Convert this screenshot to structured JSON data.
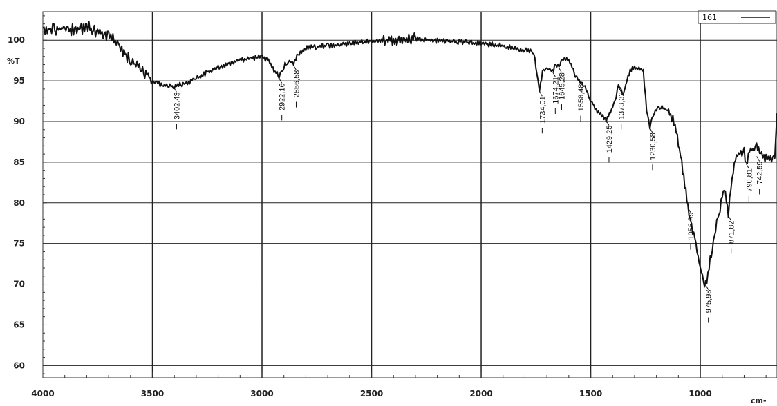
{
  "chart_data": {
    "type": "line",
    "title": "",
    "xlabel": "cm-",
    "ylabel": "%T",
    "xlim": [
      4000,
      650
    ],
    "ylim": [
      58.5,
      103.5
    ],
    "x_reversed": true,
    "grid": true,
    "legend_position": "top-right",
    "x_ticks": [
      4000,
      3500,
      3000,
      2500,
      2000,
      1500,
      1000
    ],
    "y_ticks": [
      100,
      95,
      90,
      85,
      80,
      75,
      70,
      65,
      60
    ],
    "series": [
      {
        "name": "161",
        "color": "#111111",
        "x": [
          4000,
          3950,
          3900,
          3850,
          3800,
          3750,
          3700,
          3650,
          3600,
          3550,
          3500,
          3450,
          3400,
          3350,
          3300,
          3250,
          3200,
          3150,
          3100,
          3050,
          3000,
          2970,
          2950,
          2922,
          2900,
          2880,
          2856,
          2830,
          2800,
          2750,
          2700,
          2600,
          2500,
          2400,
          2350,
          2300,
          2200,
          2100,
          2000,
          1900,
          1850,
          1800,
          1760,
          1745,
          1734,
          1720,
          1700,
          1674,
          1660,
          1645,
          1630,
          1610,
          1590,
          1570,
          1558,
          1530,
          1500,
          1470,
          1450,
          1429,
          1410,
          1390,
          1373,
          1350,
          1320,
          1290,
          1260,
          1245,
          1230,
          1210,
          1180,
          1150,
          1120,
          1100,
          1080,
          1057,
          1040,
          1020,
          1000,
          985,
          976,
          965,
          950,
          930,
          910,
          890,
          872,
          860,
          840,
          820,
          800,
          791,
          770,
          743,
          720,
          700,
          680,
          660,
          650
        ],
        "y": [
          101.5,
          101.3,
          101.5,
          101.2,
          101.7,
          101.0,
          100.6,
          99.2,
          97.5,
          96.5,
          95.0,
          94.4,
          94.3,
          94.7,
          95.3,
          96.0,
          96.6,
          97.1,
          97.5,
          97.8,
          97.9,
          97.5,
          96.5,
          95.5,
          96.8,
          97.5,
          97.1,
          98.5,
          99.0,
          99.2,
          99.3,
          99.6,
          99.9,
          99.9,
          100.1,
          100.2,
          99.9,
          99.8,
          99.6,
          99.3,
          99.0,
          98.8,
          98.5,
          96.0,
          93.8,
          96.0,
          96.5,
          96.2,
          97.0,
          96.7,
          97.5,
          97.8,
          97.2,
          95.6,
          95.3,
          94.4,
          92.6,
          91.3,
          90.8,
          90.2,
          91.0,
          92.5,
          94.3,
          93.5,
          96.4,
          96.6,
          96.2,
          91.5,
          89.3,
          91.2,
          91.8,
          91.5,
          90.0,
          87.5,
          84.0,
          79.5,
          77.3,
          74.7,
          72.0,
          70.2,
          70.0,
          71.2,
          73.8,
          76.9,
          79.4,
          81.9,
          78.5,
          82.1,
          85.5,
          86.0,
          86.3,
          84.9,
          86.4,
          86.9,
          85.8,
          85.5,
          85.2,
          86.0,
          91.0
        ]
      }
    ],
    "annotations": [
      {
        "x": 3402.43,
        "y": 94.3,
        "text": "3402,43"
      },
      {
        "x": 2922.16,
        "y": 95.4,
        "text": "2922,16"
      },
      {
        "x": 2856.58,
        "y": 97.0,
        "text": "2856,58"
      },
      {
        "x": 1734.01,
        "y": 93.8,
        "text": "1734,01"
      },
      {
        "x": 1674.21,
        "y": 96.2,
        "text": "1674,21"
      },
      {
        "x": 1645.28,
        "y": 96.7,
        "text": "1645,28"
      },
      {
        "x": 1558.48,
        "y": 95.3,
        "text": "1558,48"
      },
      {
        "x": 1429.25,
        "y": 90.2,
        "text": "1429,25"
      },
      {
        "x": 1373.32,
        "y": 94.3,
        "text": "1373,32"
      },
      {
        "x": 1230.58,
        "y": 89.3,
        "text": "1230,58"
      },
      {
        "x": 1056.99,
        "y": 79.5,
        "text": "1056,99"
      },
      {
        "x": 975.98,
        "y": 70.0,
        "text": "975,98"
      },
      {
        "x": 871.82,
        "y": 78.5,
        "text": "871,82"
      },
      {
        "x": 790.81,
        "y": 84.9,
        "text": "790,81"
      },
      {
        "x": 742.59,
        "y": 85.8,
        "text": "742,59"
      }
    ]
  }
}
